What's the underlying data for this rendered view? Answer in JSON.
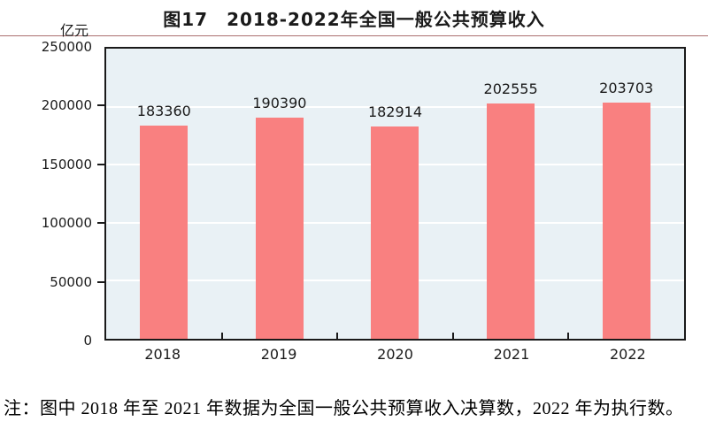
{
  "chart_data": {
    "type": "bar",
    "title": "图17　2018-2022年全国一般公共预算收入",
    "unit_label": "亿元",
    "categories": [
      "2018",
      "2019",
      "2020",
      "2021",
      "2022"
    ],
    "values": [
      183360,
      190390,
      182914,
      202555,
      203703
    ],
    "value_labels": [
      "183360",
      "190390",
      "182914",
      "202555",
      "203703"
    ],
    "ylim": [
      0,
      250000
    ],
    "ytick_interval": 50000,
    "yticks": [
      "250000",
      "200000",
      "150000",
      "100000",
      "50000",
      "0"
    ],
    "grid": "horizontal-white-lines",
    "legend": "none"
  },
  "note": "注：图中 2018 年至 2021 年数据为全国一般公共预算收入决算数，2022 年为执行数。",
  "colors": {
    "bar": "#f98080",
    "plot_background": "#e9f1f5",
    "gridline": "#ffffff",
    "frame": "#1a1a1a",
    "title_rule": "#8f3f3f",
    "text": "#1a1a1a"
  }
}
